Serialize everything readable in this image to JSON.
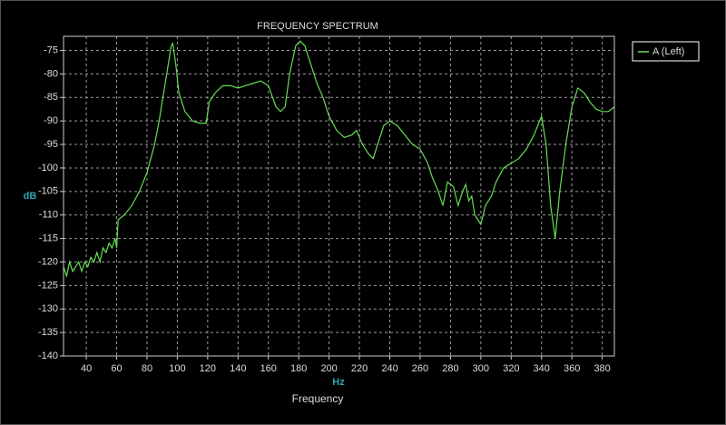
{
  "chart_data": {
    "type": "line",
    "title": "FREQUENCY SPECTRUM",
    "x_label": "Hz",
    "y_label": "dB",
    "footer": "Frequency",
    "legend_position": "top-right",
    "grid": true,
    "xlim": [
      25,
      388
    ],
    "ylim": [
      -140,
      -72
    ],
    "xticks": [
      40,
      60,
      80,
      100,
      120,
      140,
      160,
      180,
      200,
      220,
      240,
      260,
      280,
      300,
      320,
      340,
      360,
      380
    ],
    "yticks": [
      -140,
      -135,
      -130,
      -125,
      -120,
      -115,
      -110,
      -105,
      -100,
      -95,
      -90,
      -85,
      -80,
      -75
    ],
    "x": [
      25,
      27,
      29,
      31,
      33,
      35,
      37,
      39,
      41,
      43,
      45,
      47,
      49,
      51,
      53,
      55,
      57,
      59,
      60,
      61,
      65,
      70,
      75,
      80,
      85,
      88,
      90,
      93,
      96,
      97,
      99,
      101,
      105,
      110,
      115,
      119,
      121,
      125,
      130,
      135,
      140,
      145,
      150,
      155,
      160,
      165,
      168,
      171,
      174,
      178,
      181,
      184,
      188,
      192,
      196,
      200,
      205,
      210,
      215,
      218,
      222,
      226,
      229,
      232,
      236,
      240,
      245,
      250,
      255,
      260,
      265,
      268,
      272,
      275,
      278,
      282,
      285,
      288,
      290,
      292,
      294,
      296,
      298,
      300,
      303,
      307,
      310,
      315,
      320,
      325,
      330,
      335,
      340,
      343,
      346,
      349,
      352,
      356,
      360,
      364,
      368,
      372,
      376,
      380,
      384,
      388
    ],
    "series": [
      {
        "name": "A (Left)",
        "color": "#66dd55",
        "values": [
          -121,
          -123,
          -120,
          -122,
          -121,
          -120,
          -122,
          -120,
          -121,
          -119,
          -120,
          -118,
          -120,
          -117,
          -118,
          -116,
          -117,
          -115,
          -117,
          -111,
          -110,
          -108,
          -105,
          -101,
          -95,
          -90,
          -86,
          -80,
          -74,
          -73.5,
          -78,
          -84,
          -88,
          -90,
          -90.5,
          -90.5,
          -86,
          -84,
          -82.5,
          -82.5,
          -83,
          -82.5,
          -82,
          -81.5,
          -82.5,
          -87,
          -88,
          -87,
          -80,
          -74,
          -73,
          -74,
          -78,
          -82,
          -85,
          -89,
          -92,
          -93.5,
          -93,
          -92,
          -95,
          -97,
          -98,
          -95,
          -91,
          -90,
          -91,
          -93,
          -95,
          -96,
          -99,
          -102,
          -105,
          -108,
          -103,
          -104,
          -108,
          -105,
          -103.5,
          -107,
          -106,
          -110,
          -111,
          -112,
          -108,
          -106,
          -103,
          -100,
          -99,
          -98,
          -96,
          -93,
          -89,
          -95,
          -108,
          -115,
          -105,
          -95,
          -87,
          -83,
          -84,
          -86,
          -87.5,
          -88,
          -88,
          -87
        ]
      }
    ]
  }
}
